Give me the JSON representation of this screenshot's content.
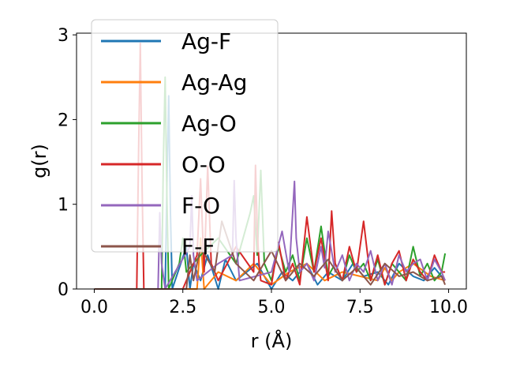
{
  "chart_data": {
    "type": "line",
    "title": "",
    "xlabel": "r (Å)",
    "ylabel": "g(r)",
    "xlim": [
      -0.5,
      10.5
    ],
    "ylim": [
      0,
      3.02
    ],
    "xticks": [
      0.0,
      2.5,
      5.0,
      7.5,
      10.0
    ],
    "xtick_labels": [
      "0.0",
      "2.5",
      "5.0",
      "7.5",
      "10.0"
    ],
    "yticks": [
      0,
      1,
      2,
      3
    ],
    "ytick_labels": [
      "0",
      "1",
      "2",
      "3"
    ],
    "grid": false,
    "legend_position": "upper-left",
    "series": [
      {
        "name": "Ag-F",
        "color": "#1f77b4",
        "x": [
          0,
          2.0,
          2.05,
          2.1,
          2.15,
          2.2,
          2.6,
          2.7,
          2.8,
          3.0,
          3.2,
          3.5,
          3.7,
          4.0,
          4.3,
          4.6,
          5.0,
          5.3,
          5.6,
          6.0,
          6.3,
          6.6,
          7.0,
          7.3,
          7.6,
          8.0,
          8.3,
          8.6,
          9.0,
          9.3,
          9.6,
          9.9
        ],
        "y": [
          0,
          0,
          1.2,
          2.28,
          0.9,
          0,
          0.5,
          0,
          0.3,
          0.1,
          0.4,
          0,
          0.35,
          0.1,
          0.2,
          0.3,
          0,
          0.2,
          0.1,
          0.3,
          0.05,
          0.2,
          0.1,
          0.3,
          0.15,
          0.2,
          0.05,
          0.3,
          0.15,
          0.1,
          0.25,
          0.1
        ]
      },
      {
        "name": "Ag-Ag",
        "color": "#ff7f0e",
        "x": [
          0,
          2.9,
          3.0,
          3.1,
          3.5,
          4.0,
          4.5,
          5.0,
          5.5,
          6.0,
          6.5,
          7.0,
          7.5,
          8.0,
          8.2,
          8.4,
          8.6,
          9.0,
          9.5,
          9.9
        ],
        "y": [
          0,
          0,
          0.6,
          0,
          0.2,
          0.1,
          0.3,
          0.05,
          0.2,
          0.3,
          0.1,
          0.2,
          0.15,
          0.1,
          0.25,
          0.1,
          0.2,
          0.3,
          0.15,
          0.1
        ]
      },
      {
        "name": "Ag-O",
        "color": "#2ca02c",
        "x": [
          0,
          1.9,
          1.95,
          2.0,
          2.05,
          2.1,
          2.4,
          2.5,
          2.6,
          3.0,
          3.5,
          4.0,
          4.4,
          4.5,
          4.6,
          4.7,
          4.8,
          5.0,
          5.2,
          5.4,
          5.6,
          5.8,
          6.0,
          6.2,
          6.4,
          6.6,
          6.8,
          7.0,
          7.2,
          7.4,
          7.6,
          7.8,
          8.0,
          8.2,
          8.4,
          8.6,
          8.8,
          9.0,
          9.2,
          9.4,
          9.6,
          9.8,
          9.9
        ],
        "y": [
          0,
          0,
          1.5,
          2.5,
          1.1,
          0,
          0.3,
          0.6,
          0.2,
          0.4,
          0.6,
          0.3,
          0.9,
          1.1,
          0.4,
          1.4,
          0.3,
          0.1,
          0.5,
          0.2,
          0.4,
          0.1,
          0.6,
          0.2,
          0.74,
          0.15,
          0.3,
          0.1,
          0.4,
          0.2,
          0.3,
          0.1,
          0.35,
          0.05,
          0.3,
          0.2,
          0.1,
          0.5,
          0.15,
          0.3,
          0.1,
          0.2,
          0.42
        ]
      },
      {
        "name": "O-O",
        "color": "#d62728",
        "x": [
          0,
          1.2,
          1.25,
          1.3,
          1.35,
          1.4,
          2.5,
          2.9,
          3.0,
          3.1,
          3.2,
          3.3,
          3.5,
          4.0,
          4.5,
          4.55,
          4.6,
          4.65,
          4.7,
          5.0,
          5.2,
          5.4,
          5.6,
          5.8,
          6.0,
          6.2,
          6.4,
          6.6,
          6.7,
          6.8,
          7.0,
          7.2,
          7.4,
          7.6,
          7.8,
          8.0,
          8.2,
          8.4,
          8.6,
          8.8,
          9.0,
          9.2,
          9.4,
          9.6,
          9.8,
          9.9
        ],
        "y": [
          0,
          0,
          1.6,
          2.9,
          1.2,
          0,
          0,
          0.4,
          1.3,
          0.2,
          1.45,
          0.3,
          0.1,
          0.5,
          0.2,
          1.46,
          0.7,
          0.3,
          0.1,
          0.05,
          0.55,
          0.1,
          0.3,
          0.05,
          0.85,
          0.2,
          0.6,
          0.1,
          0.92,
          0.3,
          0.1,
          0.5,
          0.2,
          0.8,
          0.1,
          0.4,
          0.05,
          0.3,
          0.45,
          0.1,
          0.35,
          0.2,
          0.1,
          0.4,
          0.2,
          0.2
        ]
      },
      {
        "name": "F-O",
        "color": "#9467bd",
        "x": [
          0,
          1.8,
          1.85,
          1.9,
          2.0,
          2.7,
          2.75,
          2.8,
          2.9,
          3.5,
          3.9,
          3.95,
          4.0,
          4.1,
          5.0,
          5.3,
          5.5,
          5.6,
          5.65,
          5.7,
          5.8,
          6.0,
          6.2,
          6.4,
          6.5,
          6.6,
          6.8,
          7.0,
          7.2,
          7.4,
          7.6,
          7.8,
          8.0,
          8.2,
          8.4,
          8.6,
          8.8,
          9.0,
          9.2,
          9.4,
          9.6,
          9.8,
          9.9
        ],
        "y": [
          0,
          0,
          0.9,
          0.3,
          0,
          0.5,
          1.1,
          0.4,
          0.1,
          0.3,
          0.4,
          1.28,
          0.6,
          0.1,
          0.2,
          0.68,
          0.2,
          0.9,
          1.27,
          0.6,
          0.2,
          0.3,
          0.1,
          0.5,
          0.25,
          0.68,
          0.2,
          0.4,
          0.1,
          0.3,
          0.2,
          0.45,
          0.1,
          0.3,
          0.05,
          0.4,
          0.2,
          0.3,
          0.35,
          0.1,
          0.35,
          0.2,
          0.1
        ]
      },
      {
        "name": "F-F",
        "color": "#8c564b",
        "x": [
          0,
          2.6,
          2.7,
          2.8,
          3.0,
          3.4,
          3.6,
          4.0,
          4.5,
          5.0,
          5.4,
          5.8,
          6.2,
          6.6,
          7.0,
          7.4,
          7.8,
          8.2,
          8.6,
          9.0,
          9.4,
          9.8,
          9.9
        ],
        "y": [
          0,
          0,
          0.4,
          0.1,
          0.5,
          0.2,
          0.8,
          0.3,
          0.1,
          0.45,
          0.1,
          0.3,
          0.15,
          0.35,
          0.1,
          0.25,
          0.05,
          0.3,
          0.15,
          0.2,
          0.1,
          0.15,
          0.05
        ]
      }
    ]
  }
}
